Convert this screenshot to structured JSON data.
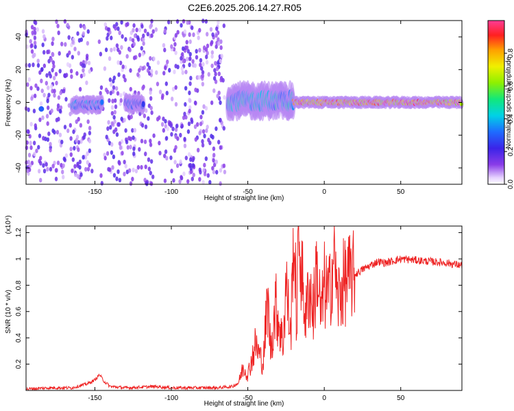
{
  "figure_title": "C2E6.2025.206.14.27.R05",
  "chart_data": [
    {
      "type": "heatmap",
      "title": "C2E6.2025.206.14.27.R05",
      "xlabel": "Height of straight line (km)",
      "ylabel": "Frequency (Hz)",
      "xlim": [
        -195,
        90
      ],
      "ylim": [
        -50,
        50
      ],
      "x_ticks": [
        -150,
        -100,
        -50,
        0,
        50
      ],
      "y_ticks": [
        -40,
        -20,
        0,
        20,
        40
      ],
      "grid": false,
      "colorbar": {
        "label": "Normalized spectral amplitude",
        "range": [
          0,
          1
        ],
        "ticks": [
          0.0,
          0.2,
          0.4,
          0.6,
          0.8
        ],
        "colormap": "rainbow (white-purple-blue-cyan-green-yellow-orange-red-pink)"
      },
      "features": [
        {
          "description": "scattered broadband noise",
          "x_range": [
            -195,
            -65
          ],
          "y_range": [
            -50,
            50
          ],
          "amplitude": 0.1
        },
        {
          "description": "weak spectral blob",
          "x": -185,
          "y": -4,
          "amplitude": 0.3
        },
        {
          "description": "spectral blob",
          "x_range": [
            -165,
            -145
          ],
          "y_range": [
            -6,
            3
          ],
          "amplitude": 0.4
        },
        {
          "description": "spectral blob",
          "x_range": [
            -130,
            -118
          ],
          "y_range": [
            -6,
            4
          ],
          "amplitude": 0.35
        },
        {
          "description": "narrowing band centered near 0 Hz",
          "x_range": [
            -63,
            -20
          ],
          "y_range": [
            -8,
            10
          ],
          "amplitude": 0.5
        },
        {
          "description": "narrow strong band near 0 Hz",
          "x_range": [
            -20,
            90
          ],
          "y_range": [
            -3,
            3
          ],
          "amplitude": 1.0
        }
      ]
    },
    {
      "type": "line",
      "xlabel": "Height of straight line (km)",
      "ylabel": "SNR (10 * v/v)",
      "y_multiplier": "(x10⁴)",
      "xlim": [
        -195,
        90
      ],
      "ylim": [
        0,
        1.25
      ],
      "x_ticks": [
        -150,
        -100,
        -50,
        0,
        50
      ],
      "y_ticks": [
        0.2,
        0.4,
        0.6,
        0.8,
        1.0,
        1.2
      ],
      "grid": false,
      "series": [
        {
          "color": "#ee2222",
          "x": [
            -195,
            -180,
            -165,
            -155,
            -150,
            -147,
            -144,
            -140,
            -130,
            -110,
            -100,
            -90,
            -70,
            -60,
            -56,
            -53,
            -50,
            -45,
            -40,
            -37,
            -35,
            -32,
            -30,
            -27,
            -25,
            -22,
            -20,
            -18,
            -17,
            -15,
            -12,
            -10,
            -7,
            -5,
            -2,
            0,
            3,
            5,
            7,
            8,
            10,
            12,
            15,
            20,
            25,
            30,
            35,
            40,
            50,
            60,
            70,
            80,
            90
          ],
          "values": [
            0.01,
            0.02,
            0.02,
            0.05,
            0.08,
            0.12,
            0.07,
            0.03,
            0.02,
            0.03,
            0.02,
            0.02,
            0.02,
            0.03,
            0.06,
            0.18,
            0.12,
            0.35,
            0.2,
            0.7,
            0.3,
            0.65,
            0.55,
            0.35,
            0.83,
            0.4,
            1.2,
            0.5,
            1.25,
            0.9,
            0.55,
            0.8,
            0.6,
            0.95,
            0.55,
            0.8,
            0.7,
            0.9,
            1.1,
            0.7,
            0.72,
            0.8,
            0.85,
            0.88,
            0.92,
            0.95,
            0.98,
            0.97,
            1.0,
            0.99,
            0.98,
            0.97,
            0.95
          ]
        }
      ]
    }
  ]
}
